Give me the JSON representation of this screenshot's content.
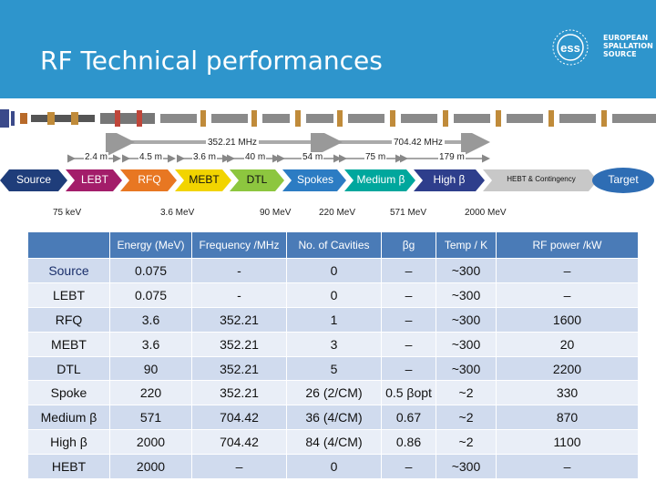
{
  "slide": {
    "title": "RF Technical performances",
    "logo_text": [
      "EUROPEAN",
      "SPALLATION",
      "SOURCE"
    ],
    "logo_mark": "ess"
  },
  "diagram": {
    "freq_low": "352.21 MHz",
    "freq_high": "704.42 MHz",
    "lengths": [
      "2.4 m",
      "4.5 m",
      "3.6 m",
      "40 m",
      "54 m",
      "75 m",
      "179 m"
    ],
    "sections": [
      "Source",
      "LEBT",
      "RFQ",
      "MEBT",
      "DTL",
      "Spokes",
      "Medium β",
      "High β",
      "HEBT & Contingency",
      "Target"
    ],
    "energies": [
      "75 keV",
      "3.6 MeV",
      "90 MeV",
      "220 MeV",
      "571 MeV",
      "2000 MeV"
    ],
    "colors": {
      "source": "#1f3d7a",
      "lebt": "#a31d6a",
      "rfq": "#e87722",
      "mebt": "#f2d400",
      "dtl": "#8dc63f",
      "spokes": "#2c7cc3",
      "medium": "#00a79d",
      "high": "#2e3e8c",
      "hebt": "#c8c8c8",
      "target": "#2e6db4"
    }
  },
  "table": {
    "headers": [
      "",
      "Energy (MeV)",
      "Frequency /MHz",
      "No. of Cavities",
      "βg",
      "Temp / K",
      "RF power /kW"
    ],
    "rows": [
      {
        "name": "Source",
        "name_color": "#1a2f6b",
        "energy": "0.075",
        "freq": "-",
        "cav": "0",
        "bg": "–",
        "temp": "~300",
        "power": "–"
      },
      {
        "name": "LEBT",
        "name_color": "#111111",
        "energy": "0.075",
        "freq": "-",
        "cav": "0",
        "bg": "–",
        "temp": "~300",
        "power": "–"
      },
      {
        "name": "RFQ",
        "name_color": "#111111",
        "energy": "3.6",
        "freq": "352.21",
        "cav": "1",
        "bg": "–",
        "temp": "~300",
        "power": "1600"
      },
      {
        "name": "MEBT",
        "name_color": "#111111",
        "energy": "3.6",
        "freq": "352.21",
        "cav": "3",
        "bg": "–",
        "temp": "~300",
        "power": "20"
      },
      {
        "name": "DTL",
        "name_color": "#111111",
        "energy": "90",
        "freq": "352.21",
        "cav": "5",
        "bg": "–",
        "temp": "~300",
        "power": "2200"
      },
      {
        "name": "Spoke",
        "name_color": "#111111",
        "energy": "220",
        "freq": "352.21",
        "cav": "26 (2/CM)",
        "bg": "0.5 βopt",
        "temp": "~2",
        "power": "330"
      },
      {
        "name": "Medium β",
        "name_color": "#111111",
        "energy": "571",
        "freq": "704.42",
        "cav": "36 (4/CM)",
        "bg": "0.67",
        "temp": "~2",
        "power": "870"
      },
      {
        "name": "High β",
        "name_color": "#111111",
        "energy": "2000",
        "freq": "704.42",
        "cav": "84 (4/CM)",
        "bg": "0.86",
        "temp": "~2",
        "power": "1100"
      },
      {
        "name": "HEBT",
        "name_color": "#111111",
        "energy": "2000",
        "freq": "–",
        "cav": "0",
        "bg": "–",
        "temp": "~300",
        "power": "–"
      }
    ]
  }
}
